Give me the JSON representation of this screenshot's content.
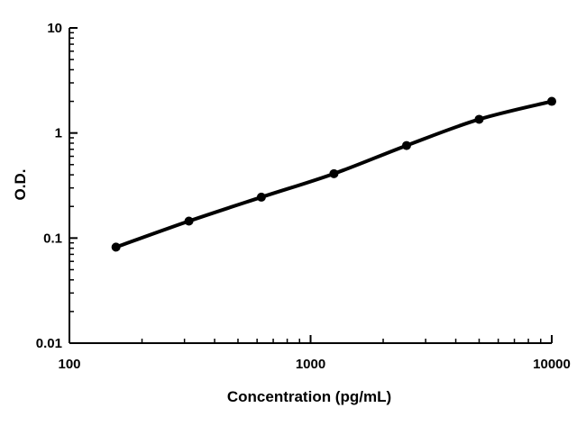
{
  "chart_data": {
    "type": "line",
    "title": "",
    "xlabel": "Concentration (pg/mL)",
    "ylabel": "O.D.",
    "xscale": "log",
    "yscale": "log",
    "xlim": [
      100,
      10000
    ],
    "ylim": [
      0.01,
      10
    ],
    "grid": false,
    "x_ticks": [
      {
        "value": 100,
        "label": "100"
      },
      {
        "value": 1000,
        "label": "1000"
      },
      {
        "value": 10000,
        "label": "10000"
      }
    ],
    "y_ticks": [
      {
        "value": 0.01,
        "label": "0.01"
      },
      {
        "value": 0.1,
        "label": "0.1"
      },
      {
        "value": 1,
        "label": "1"
      },
      {
        "value": 10,
        "label": "10"
      }
    ],
    "series": [
      {
        "x": [
          156,
          313,
          625,
          1250,
          2500,
          5000,
          10000
        ],
        "y": [
          0.082,
          0.145,
          0.245,
          0.41,
          0.76,
          1.35,
          2.0
        ],
        "color": "#000000",
        "marker": "circle"
      }
    ]
  }
}
